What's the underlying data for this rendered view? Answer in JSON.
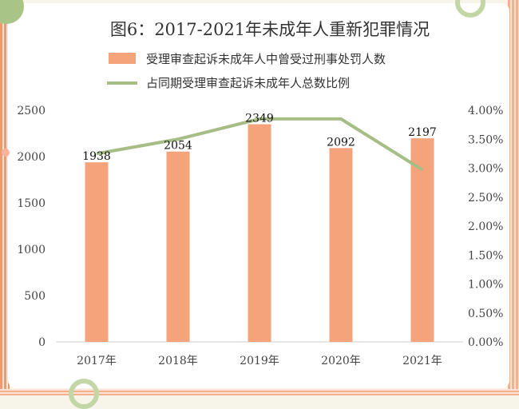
{
  "chart_data": {
    "type": "bar",
    "title": "图6：2017-2021年未成年人重新犯罪情况",
    "categories": [
      "2017年",
      "2018年",
      "2019年",
      "2020年",
      "2021年"
    ],
    "series": [
      {
        "name": "受理审查起诉未成年人中曾受过刑事处罚人数",
        "type": "bar",
        "axis": "left",
        "color": "#f4a37b",
        "values": [
          1938,
          2054,
          2349,
          2092,
          2197
        ]
      },
      {
        "name": "占同期受理审查起诉未成年人总数比例",
        "type": "line",
        "axis": "right",
        "color": "#a6bd86",
        "values": [
          3.25,
          3.5,
          3.85,
          3.85,
          2.97
        ]
      }
    ],
    "ylim_left": [
      0,
      2500
    ],
    "yticks_left": [
      "0",
      "500",
      "1000",
      "1500",
      "2000",
      "2500"
    ],
    "ylim_right": [
      0,
      4.0
    ],
    "yticks_right": [
      "0.00%",
      "0.50%",
      "1.00%",
      "1.50%",
      "2.00%",
      "2.50%",
      "3.00%",
      "3.50%",
      "4.00%"
    ],
    "legend_position": "top",
    "grid": false
  }
}
